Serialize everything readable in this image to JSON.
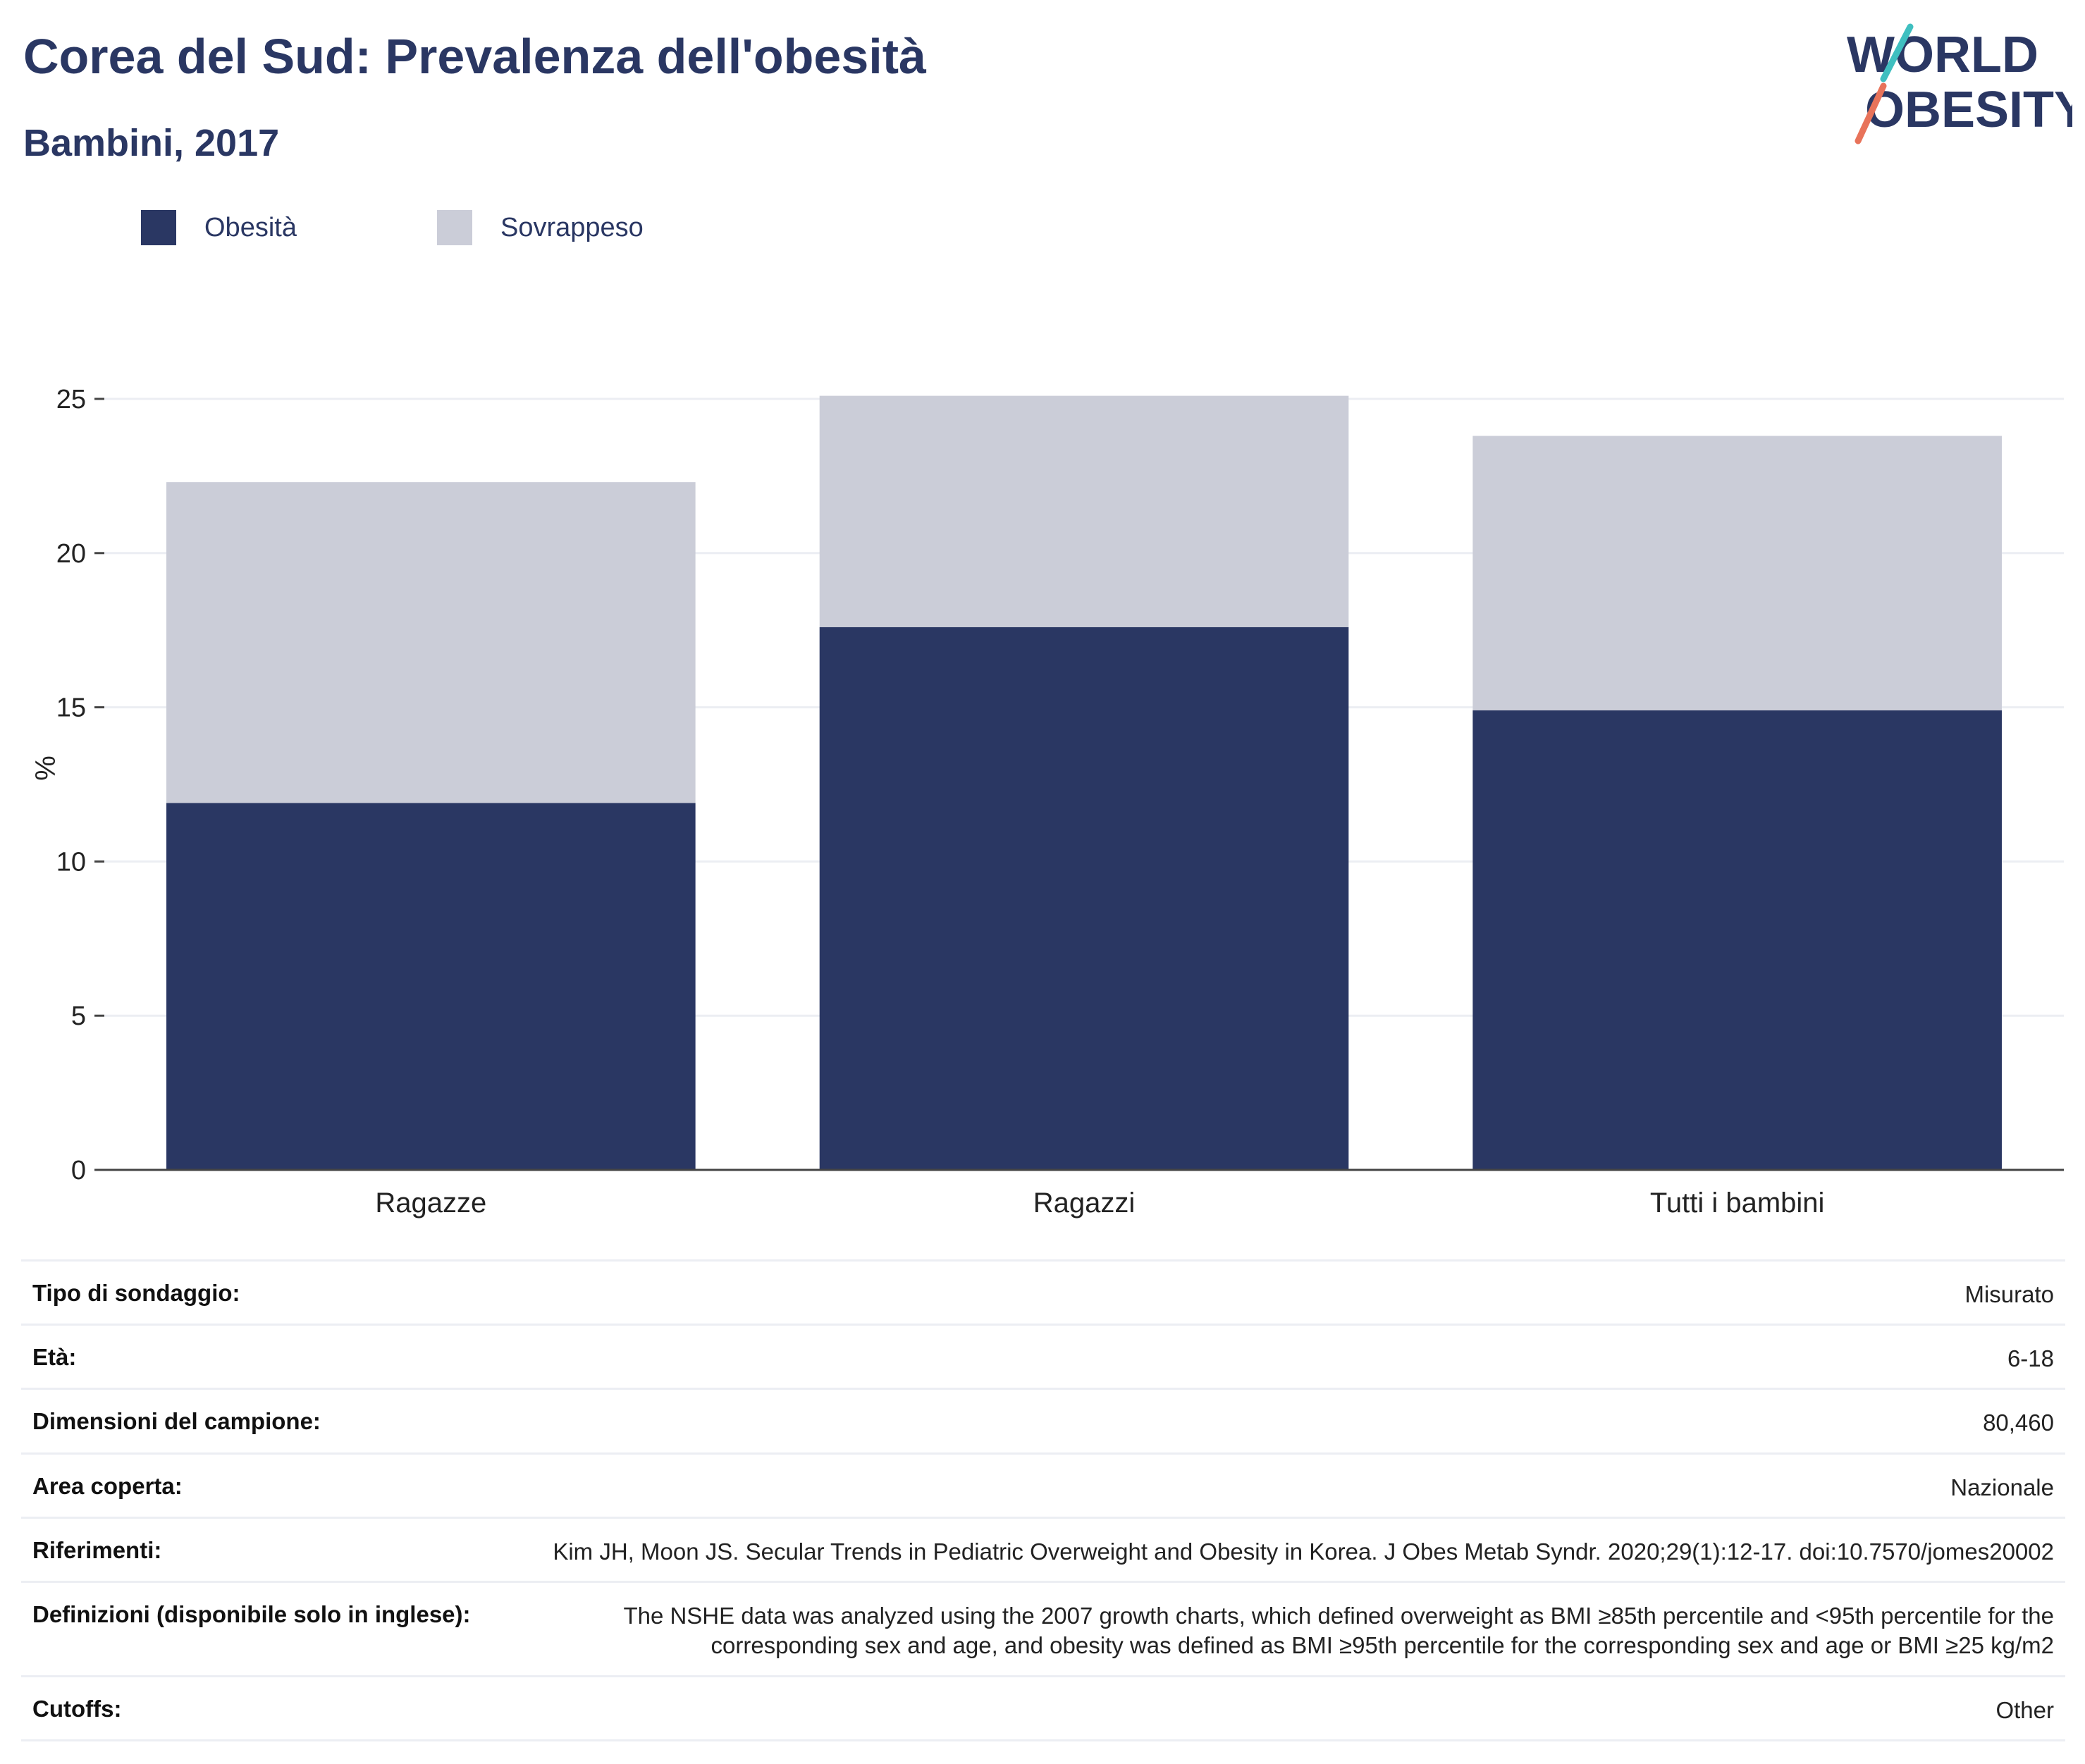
{
  "header": {
    "title": "Corea del Sud: Prevalenza dell'obesità",
    "subtitle": "Bambini, 2017"
  },
  "logo": {
    "line1": "WORLD",
    "line2": "OBESITY"
  },
  "colors": {
    "obesity": "#2a3763",
    "overweight": "#cbcdd8",
    "logo_teal": "#3fbfc0",
    "logo_coral": "#e8735a"
  },
  "chart_data": {
    "type": "bar",
    "stacked": true,
    "categories": [
      "Ragazze",
      "Ragazzi",
      "Tutti i bambini"
    ],
    "series": [
      {
        "name": "Obesità",
        "values": [
          11.9,
          17.6,
          14.9
        ]
      },
      {
        "name": "Sovrappeso",
        "values": [
          10.4,
          7.5,
          8.9
        ]
      }
    ],
    "ylabel": "%",
    "xlabel": "",
    "ylim": [
      0,
      25
    ],
    "yticks": [
      "0",
      "5",
      "10",
      "15",
      "20",
      "25"
    ],
    "grid": true,
    "legend_position": "top-left"
  },
  "info": [
    {
      "key": "Tipo di sondaggio:",
      "value": "Misurato"
    },
    {
      "key": "Età:",
      "value": "6-18"
    },
    {
      "key": "Dimensioni del campione:",
      "value": "80,460"
    },
    {
      "key": "Area coperta:",
      "value": "Nazionale"
    },
    {
      "key": "Riferimenti:",
      "value": "Kim JH, Moon JS. Secular Trends in Pediatric Overweight and Obesity in Korea. J Obes Metab Syndr. 2020;29(1):12-17. doi:10.7570/jomes20002"
    },
    {
      "key": "Definizioni (disponibile solo in inglese):",
      "value": "The NSHE data was analyzed using the 2007 growth charts, which defined overweight as BMI ≥85th percentile and <95th percentile for the corresponding sex and age, and obesity was defined as BMI ≥95th percentile for the corresponding sex and age or BMI ≥25 kg/m2"
    },
    {
      "key": "Cutoffs:",
      "value": "Other"
    }
  ]
}
